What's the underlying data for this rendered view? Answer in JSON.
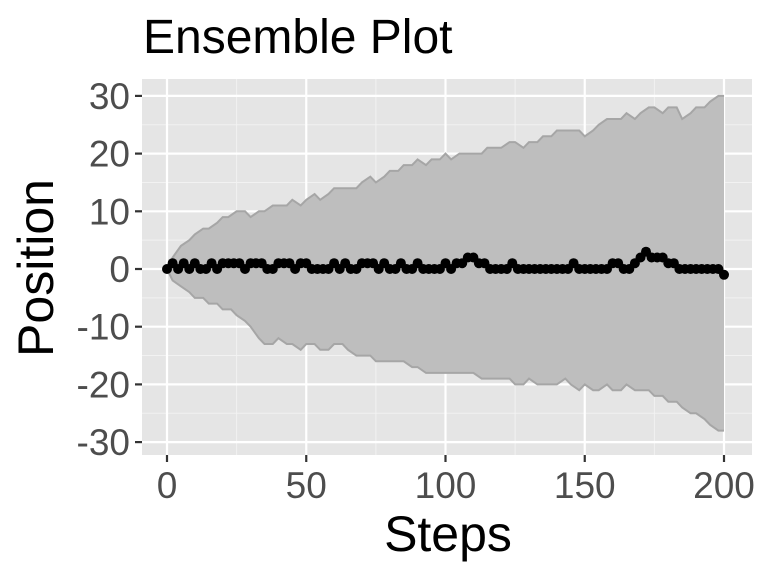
{
  "chart_data": {
    "type": "line",
    "title": "Ensemble Plot",
    "xlabel": "Steps",
    "ylabel": "Position",
    "xlim": [
      0,
      200
    ],
    "ylim": [
      -30,
      30
    ],
    "xticks": [
      0,
      50,
      100,
      150,
      200
    ],
    "yticks": [
      30,
      20,
      10,
      0,
      -10,
      -20,
      -30
    ],
    "grid": true,
    "panel_background": "#e5e5e5",
    "band": {
      "fill": "#bebebe",
      "stroke": "#a6a6a6",
      "upper": [
        [
          0,
          0
        ],
        [
          2,
          2
        ],
        [
          5,
          4
        ],
        [
          8,
          5
        ],
        [
          10,
          6
        ],
        [
          13,
          7
        ],
        [
          15,
          7
        ],
        [
          18,
          8
        ],
        [
          20,
          9
        ],
        [
          22,
          9
        ],
        [
          25,
          10
        ],
        [
          28,
          10
        ],
        [
          30,
          9
        ],
        [
          33,
          10
        ],
        [
          35,
          10
        ],
        [
          38,
          11
        ],
        [
          40,
          11
        ],
        [
          43,
          11
        ],
        [
          45,
          12
        ],
        [
          48,
          11
        ],
        [
          50,
          12
        ],
        [
          53,
          13
        ],
        [
          55,
          12
        ],
        [
          58,
          13
        ],
        [
          60,
          14
        ],
        [
          63,
          14
        ],
        [
          65,
          14
        ],
        [
          68,
          14
        ],
        [
          70,
          15
        ],
        [
          73,
          16
        ],
        [
          75,
          15
        ],
        [
          78,
          16
        ],
        [
          80,
          17
        ],
        [
          83,
          17
        ],
        [
          85,
          18
        ],
        [
          88,
          18
        ],
        [
          90,
          19
        ],
        [
          93,
          18
        ],
        [
          95,
          19
        ],
        [
          98,
          19
        ],
        [
          100,
          20
        ],
        [
          102,
          19
        ],
        [
          105,
          20
        ],
        [
          108,
          20
        ],
        [
          110,
          20
        ],
        [
          113,
          20
        ],
        [
          115,
          21
        ],
        [
          118,
          21
        ],
        [
          120,
          21
        ],
        [
          123,
          22
        ],
        [
          125,
          22
        ],
        [
          128,
          21
        ],
        [
          130,
          22
        ],
        [
          133,
          22
        ],
        [
          135,
          23
        ],
        [
          138,
          23
        ],
        [
          140,
          24
        ],
        [
          143,
          24
        ],
        [
          145,
          24
        ],
        [
          148,
          24
        ],
        [
          150,
          23
        ],
        [
          153,
          24
        ],
        [
          155,
          25
        ],
        [
          158,
          26
        ],
        [
          160,
          26
        ],
        [
          163,
          26
        ],
        [
          165,
          27
        ],
        [
          168,
          26
        ],
        [
          170,
          27
        ],
        [
          173,
          28
        ],
        [
          175,
          28
        ],
        [
          178,
          27
        ],
        [
          180,
          28
        ],
        [
          183,
          28
        ],
        [
          185,
          26
        ],
        [
          188,
          27
        ],
        [
          190,
          28
        ],
        [
          193,
          28
        ],
        [
          195,
          29
        ],
        [
          198,
          30
        ],
        [
          200,
          30
        ]
      ],
      "lower": [
        [
          0,
          0
        ],
        [
          2,
          -2
        ],
        [
          5,
          -3
        ],
        [
          8,
          -4
        ],
        [
          10,
          -5
        ],
        [
          13,
          -5
        ],
        [
          15,
          -6
        ],
        [
          18,
          -6
        ],
        [
          20,
          -7
        ],
        [
          23,
          -7
        ],
        [
          25,
          -8
        ],
        [
          28,
          -9
        ],
        [
          30,
          -10
        ],
        [
          33,
          -12
        ],
        [
          35,
          -13
        ],
        [
          38,
          -13
        ],
        [
          40,
          -12
        ],
        [
          43,
          -13
        ],
        [
          45,
          -13
        ],
        [
          48,
          -14
        ],
        [
          50,
          -13
        ],
        [
          53,
          -13
        ],
        [
          55,
          -14
        ],
        [
          58,
          -14
        ],
        [
          60,
          -13
        ],
        [
          63,
          -13
        ],
        [
          65,
          -14
        ],
        [
          68,
          -15
        ],
        [
          70,
          -15
        ],
        [
          73,
          -15
        ],
        [
          75,
          -16
        ],
        [
          78,
          -16
        ],
        [
          80,
          -16
        ],
        [
          83,
          -16
        ],
        [
          85,
          -16
        ],
        [
          88,
          -17
        ],
        [
          90,
          -17
        ],
        [
          93,
          -18
        ],
        [
          95,
          -18
        ],
        [
          98,
          -18
        ],
        [
          100,
          -18
        ],
        [
          103,
          -18
        ],
        [
          105,
          -18
        ],
        [
          108,
          -18
        ],
        [
          110,
          -18
        ],
        [
          113,
          -19
        ],
        [
          115,
          -19
        ],
        [
          118,
          -19
        ],
        [
          120,
          -19
        ],
        [
          123,
          -19
        ],
        [
          125,
          -20
        ],
        [
          128,
          -20
        ],
        [
          130,
          -19
        ],
        [
          133,
          -20
        ],
        [
          135,
          -20
        ],
        [
          138,
          -20
        ],
        [
          140,
          -20
        ],
        [
          143,
          -19
        ],
        [
          145,
          -20
        ],
        [
          148,
          -21
        ],
        [
          150,
          -20
        ],
        [
          153,
          -21
        ],
        [
          155,
          -21
        ],
        [
          158,
          -20
        ],
        [
          160,
          -21
        ],
        [
          163,
          -21
        ],
        [
          165,
          -20
        ],
        [
          168,
          -21
        ],
        [
          170,
          -21
        ],
        [
          173,
          -21
        ],
        [
          175,
          -22
        ],
        [
          178,
          -22
        ],
        [
          180,
          -23
        ],
        [
          183,
          -23
        ],
        [
          185,
          -24
        ],
        [
          188,
          -25
        ],
        [
          190,
          -25
        ],
        [
          193,
          -26
        ],
        [
          195,
          -27
        ],
        [
          198,
          -28
        ],
        [
          200,
          -28
        ]
      ]
    },
    "series": [
      {
        "color": "#000000",
        "x": [
          0,
          2,
          4,
          6,
          8,
          10,
          12,
          14,
          16,
          18,
          20,
          22,
          24,
          26,
          28,
          30,
          32,
          34,
          36,
          38,
          40,
          42,
          44,
          46,
          48,
          50,
          52,
          54,
          56,
          58,
          60,
          62,
          64,
          66,
          68,
          70,
          72,
          74,
          76,
          78,
          80,
          82,
          84,
          86,
          88,
          90,
          92,
          94,
          96,
          98,
          100,
          102,
          104,
          106,
          108,
          110,
          112,
          114,
          116,
          118,
          120,
          122,
          124,
          126,
          128,
          130,
          132,
          134,
          136,
          138,
          140,
          142,
          144,
          146,
          148,
          150,
          152,
          154,
          156,
          158,
          160,
          162,
          164,
          166,
          168,
          170,
          172,
          174,
          176,
          178,
          180,
          182,
          184,
          186,
          188,
          190,
          192,
          194,
          196,
          198,
          200
        ],
        "y": [
          0,
          1,
          0,
          1,
          0,
          1,
          0,
          0,
          1,
          0,
          1,
          1,
          1,
          1,
          0,
          1,
          1,
          1,
          0,
          0,
          1,
          1,
          1,
          0,
          1,
          1,
          0,
          0,
          0,
          0,
          1,
          0,
          1,
          0,
          0,
          1,
          1,
          1,
          0,
          1,
          0,
          0,
          1,
          0,
          0,
          1,
          0,
          0,
          0,
          0,
          1,
          0,
          1,
          1,
          2,
          2,
          1,
          1,
          0,
          0,
          0,
          0,
          1,
          0,
          0,
          0,
          0,
          0,
          0,
          0,
          0,
          0,
          0,
          1,
          0,
          0,
          0,
          0,
          0,
          0,
          1,
          1,
          0,
          0,
          1,
          2,
          3,
          2,
          2,
          2,
          1,
          1,
          0,
          0,
          0,
          0,
          0,
          0,
          0,
          0,
          -1
        ]
      }
    ]
  }
}
